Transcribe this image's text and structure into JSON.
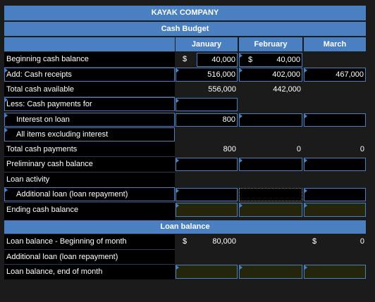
{
  "title": "KAYAK COMPANY",
  "subtitle": "Cash Budget",
  "months": [
    "January",
    "February",
    "March"
  ],
  "rows": {
    "beginning_cash": "Beginning cash balance",
    "cash_receipts": "Add: Cash receipts",
    "total_cash_available": "Total cash available",
    "less_payments": "Less: Cash payments for",
    "interest_on_loan": "Interest on loan",
    "all_items": "All items excluding interest",
    "total_payments": "Total cash payments",
    "preliminary": "Preliminary cash balance",
    "loan_activity": "Loan activity",
    "additional_loan": "Additional loan (loan repayment)",
    "ending_cash": "Ending cash balance"
  },
  "values": {
    "dollar": "$",
    "jan_begin": "40,000",
    "feb_begin": "40,000",
    "jan_receipts": "516,000",
    "feb_receipts": "402,000",
    "mar_receipts": "467,000",
    "jan_total_avail": "556,000",
    "feb_total_avail": "442,000",
    "jan_interest": "800",
    "jan_total_pay": "800",
    "feb_total_pay": "0",
    "mar_total_pay": "0"
  },
  "loan_section": {
    "header": "Loan balance",
    "begin_label": "Loan balance - Beginning of month",
    "additional_label": "Additional loan (loan repayment)",
    "end_label": "Loan balance, end of month",
    "jan_begin": "80,000",
    "mar_begin": "0"
  }
}
